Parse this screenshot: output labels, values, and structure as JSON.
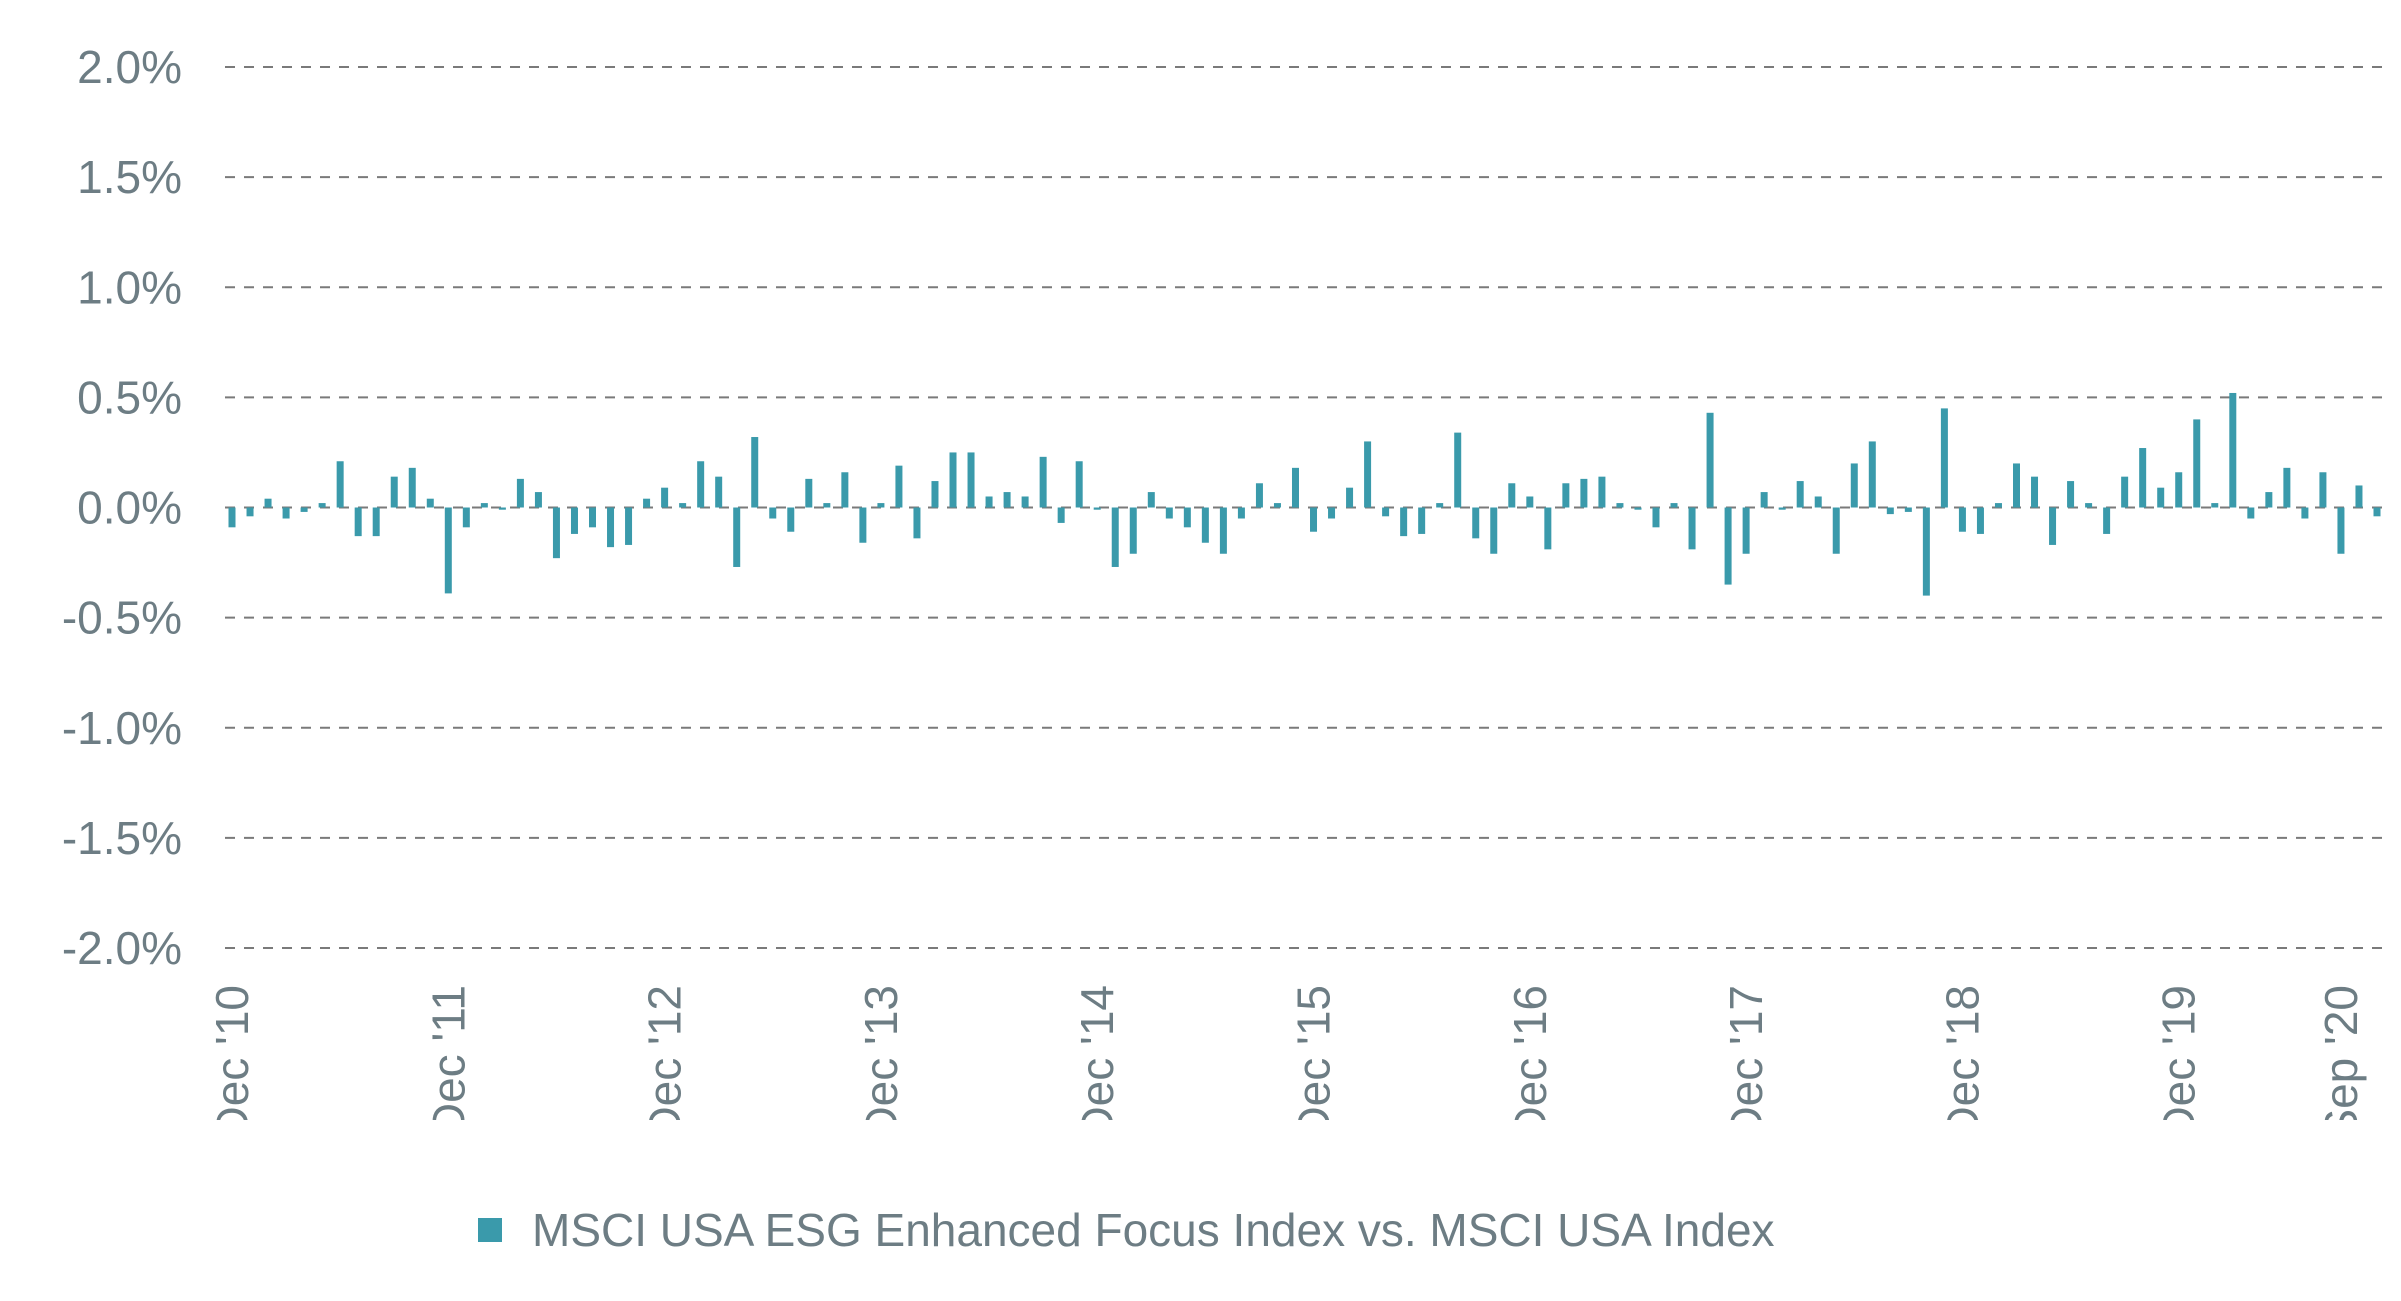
{
  "chart_data": {
    "type": "bar",
    "y_unit": "%",
    "ylim": [
      -2.0,
      2.0
    ],
    "y_ticks": [
      "2.0%",
      "1.5%",
      "1.0%",
      "0.5%",
      "0.0%",
      "-0.5%",
      "-1.0%",
      "-1.5%",
      "-2.0%"
    ],
    "y_tick_values": [
      2.0,
      1.5,
      1.0,
      0.5,
      0.0,
      -0.5,
      -1.0,
      -1.5,
      -2.0
    ],
    "grid": true,
    "x_tick_labels": [
      {
        "label": "Dec '10",
        "index": 0
      },
      {
        "label": "Dec '11",
        "index": 12
      },
      {
        "label": "Dec '12",
        "index": 24
      },
      {
        "label": "Dec '13",
        "index": 36
      },
      {
        "label": "Dec '14",
        "index": 48
      },
      {
        "label": "Dec '15",
        "index": 60
      },
      {
        "label": "Dec '16",
        "index": 72
      },
      {
        "label": "Dec '17",
        "index": 84
      },
      {
        "label": "Dec '18",
        "index": 96
      },
      {
        "label": "Dec '19",
        "index": 108
      },
      {
        "label": "Sep '20",
        "index": 117
      }
    ],
    "x_range": [
      "Dec 2010",
      "Sep 2020"
    ],
    "legend_position": "bottom",
    "series": [
      {
        "name": "MSCI USA ESG Enhanced Focus Index vs. MSCI USA Index",
        "color": "#3a9aab",
        "values": [
          -0.09,
          -0.04,
          0.04,
          -0.05,
          -0.02,
          0.02,
          0.21,
          -0.13,
          -0.13,
          0.14,
          0.18,
          0.04,
          -0.39,
          -0.09,
          0.02,
          -0.01,
          0.13,
          0.07,
          -0.23,
          -0.12,
          -0.09,
          -0.18,
          -0.17,
          0.04,
          0.09,
          0.02,
          0.21,
          0.14,
          -0.27,
          0.32,
          -0.05,
          -0.11,
          0.13,
          0.02,
          0.16,
          -0.16,
          0.02,
          0.19,
          -0.14,
          0.12,
          0.25,
          0.25,
          0.05,
          0.07,
          0.05,
          0.23,
          -0.07,
          0.21,
          -0.01,
          -0.27,
          -0.21,
          0.07,
          -0.05,
          -0.09,
          -0.16,
          -0.21,
          -0.05,
          0.11,
          0.02,
          0.18,
          -0.11,
          -0.05,
          0.09,
          0.3,
          -0.04,
          -0.13,
          -0.12,
          0.02,
          0.34,
          -0.14,
          -0.21,
          0.11,
          0.05,
          -0.19,
          0.11,
          0.13,
          0.14,
          0.02,
          -0.01,
          -0.09,
          0.02,
          -0.19,
          0.43,
          -0.35,
          -0.21,
          0.07,
          -0.01,
          0.12,
          0.05,
          -0.21,
          0.2,
          0.3,
          -0.03,
          -0.02,
          -0.4,
          0.45,
          -0.11,
          -0.12,
          0.02,
          0.2,
          0.14,
          -0.17,
          0.12,
          0.02,
          -0.12,
          0.14,
          0.27,
          0.09,
          0.16,
          0.4,
          0.02,
          0.52,
          -0.05,
          0.07,
          0.18,
          -0.05,
          0.16,
          -0.21,
          0.1,
          -0.04
        ]
      }
    ]
  }
}
